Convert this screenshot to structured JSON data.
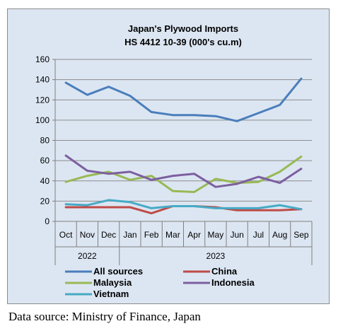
{
  "chart_data": {
    "type": "line",
    "title": "Japan's Plywood Imports",
    "subtitle": "HS 4412 10-39  (000's cu.m)",
    "categories": [
      "Oct",
      "Nov",
      "Dec",
      "Jan",
      "Feb",
      "Mar",
      "Apr",
      "May",
      "Jun",
      "Jul",
      "Aug",
      "Sep"
    ],
    "year_groups": [
      {
        "label": "2022",
        "span": [
          0,
          2
        ]
      },
      {
        "label": "2023",
        "span": [
          3,
          11
        ]
      }
    ],
    "ylim": [
      0,
      160
    ],
    "yticks": [
      0,
      20,
      40,
      60,
      80,
      100,
      120,
      140,
      160
    ],
    "grid": true,
    "legend_position": "bottom",
    "series": [
      {
        "name": "All sources",
        "color": "#4a7ebb",
        "values": [
          137,
          125,
          133,
          124,
          108,
          105,
          105,
          104,
          99,
          107,
          115,
          141
        ]
      },
      {
        "name": "China",
        "color": "#be4b48",
        "values": [
          14,
          14,
          14,
          14,
          8,
          15,
          15,
          14,
          11,
          11,
          11,
          12
        ]
      },
      {
        "name": "Malaysia",
        "color": "#98b954",
        "values": [
          39,
          45,
          49,
          41,
          45,
          30,
          29,
          42,
          38,
          39,
          49,
          64
        ]
      },
      {
        "name": "Indonesia",
        "color": "#7d5fa0",
        "values": [
          65,
          50,
          47,
          49,
          41,
          45,
          47,
          34,
          37,
          44,
          38,
          52
        ]
      },
      {
        "name": "Vietnam",
        "color": "#46aac5",
        "values": [
          17,
          16,
          21,
          19,
          13,
          15,
          15,
          13,
          13,
          13,
          16,
          12
        ]
      }
    ]
  },
  "footer": {
    "source": "Data source: Ministry of Finance, Japan"
  }
}
